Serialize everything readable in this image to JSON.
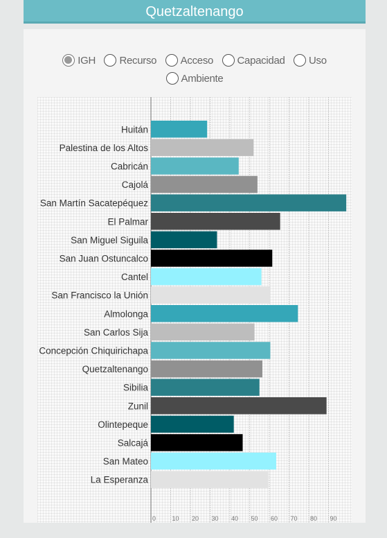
{
  "header": {
    "title": "Quetzaltenango"
  },
  "radios": [
    {
      "label": "IGH",
      "checked": true
    },
    {
      "label": "Recurso",
      "checked": false
    },
    {
      "label": "Acceso",
      "checked": false
    },
    {
      "label": "Capacidad",
      "checked": false
    },
    {
      "label": "Uso",
      "checked": false
    },
    {
      "label": "Ambiente",
      "checked": false
    }
  ],
  "chart_data": {
    "type": "bar",
    "orientation": "horizontal",
    "categories": [
      "Huitán",
      "Palestina de los Altos",
      "Cabricán",
      "Cajolá",
      "San Martín Sacatepéquez",
      "El Palmar",
      "San Miguel Siguila",
      "San Juan Ostuncalco",
      "Cantel",
      "San Francisco la Unión",
      "Almolonga",
      "San Carlos Sija",
      "Concepción Chiquirichapa",
      "Quetzaltenango",
      "Sibilia",
      "Zunil",
      "Olintepeque",
      "Salcajá",
      "San Mateo",
      "La Esperanza"
    ],
    "values": [
      28.5,
      52,
      44.5,
      54,
      99,
      65.5,
      33.5,
      61.5,
      56,
      60.5,
      74.5,
      52.5,
      60.5,
      56.5,
      55,
      89,
      42,
      46.5,
      63.5,
      59.5
    ],
    "colors": [
      "#35a7b8",
      "#bdbdbd",
      "#5ab7c2",
      "#919191",
      "#2a7f88",
      "#4a4a4a",
      "#005c66",
      "#000000",
      "#94f2ff",
      "#e2e2e2",
      "#35a7b8",
      "#bdbdbd",
      "#5ab7c2",
      "#919191",
      "#2a7f88",
      "#4a4a4a",
      "#005c66",
      "#000000",
      "#94f2ff",
      "#e2e2e2"
    ],
    "xticks": [
      0,
      10,
      20,
      30,
      40,
      50,
      60,
      70,
      80,
      90
    ],
    "xlim": [
      0,
      100
    ],
    "grid": true
  }
}
